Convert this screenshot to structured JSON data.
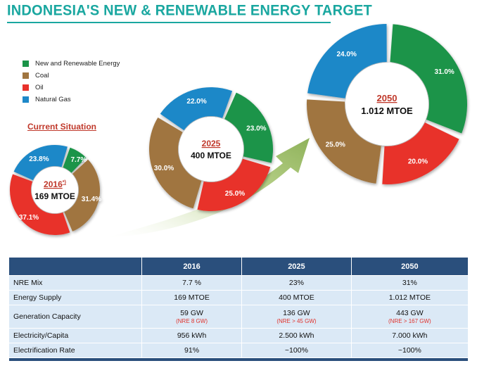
{
  "title": "INDONESIA'S NEW & RENEWABLE ENERGY TARGET",
  "current_situation_label": "Current Situation",
  "legend": [
    {
      "label": "New and Renewable Energy",
      "color": "#1a9448"
    },
    {
      "label": "Coal",
      "color": "#a07540"
    },
    {
      "label": "Oil",
      "color": "#e8312b"
    },
    {
      "label": "Natural Gas",
      "color": "#1e88c8"
    }
  ],
  "chart_data": [
    {
      "type": "pie",
      "year": "2016",
      "superscript": "*)",
      "center_value": "169 MTOE",
      "slices": [
        {
          "name": "New and Renewable Energy",
          "value": 7.7,
          "label": "7.7%",
          "color": "#1a9448"
        },
        {
          "name": "Coal",
          "value": 31.4,
          "label": "31.4%",
          "color": "#a07540"
        },
        {
          "name": "Oil",
          "value": 37.1,
          "label": "37.1%",
          "color": "#e8312b"
        },
        {
          "name": "Natural Gas",
          "value": 23.8,
          "label": "23.8%",
          "color": "#1e88c8"
        }
      ]
    },
    {
      "type": "pie",
      "year": "2025",
      "center_value": "400 MTOE",
      "slices": [
        {
          "name": "New and Renewable Energy",
          "value": 23.0,
          "label": "23.0%",
          "color": "#1a9448"
        },
        {
          "name": "Oil",
          "value": 25.0,
          "label": "25.0%",
          "color": "#e8312b"
        },
        {
          "name": "Coal",
          "value": 30.0,
          "label": "30.0%",
          "color": "#a07540"
        },
        {
          "name": "Natural Gas",
          "value": 22.0,
          "label": "22.0%",
          "color": "#1e88c8"
        }
      ]
    },
    {
      "type": "pie",
      "year": "2050",
      "center_value": "1.012 MTOE",
      "slices": [
        {
          "name": "New and Renewable Energy",
          "value": 31.0,
          "label": "31.0%",
          "color": "#1a9448"
        },
        {
          "name": "Oil",
          "value": 20.0,
          "label": "20.0%",
          "color": "#e8312b"
        },
        {
          "name": "Coal",
          "value": 25.0,
          "label": "25.0%",
          "color": "#a07540"
        },
        {
          "name": "Natural Gas",
          "value": 24.0,
          "label": "24.0%",
          "color": "#1e88c8"
        }
      ]
    }
  ],
  "table": {
    "headers": [
      "",
      "2016",
      "2025",
      "2050"
    ],
    "rows": [
      {
        "label": "NRE Mix",
        "values": [
          "7.7 %",
          "23%",
          "31%"
        ]
      },
      {
        "label": "Energy Supply",
        "values": [
          "169 MTOE",
          "400 MTOE",
          "1.012 MTOE"
        ]
      },
      {
        "label": "Generation Capacity",
        "values": [
          "59 GW",
          "136 GW",
          "443 GW"
        ],
        "notes": [
          "(NRE 8 GW)",
          "(NRE > 45 GW)",
          "(NRE > 167 GW)"
        ]
      },
      {
        "label": "Electricity/Capita",
        "values": [
          "956 kWh",
          "2.500 kWh",
          "7.000 kWh"
        ]
      },
      {
        "label": "Electrification Rate",
        "values": [
          "91%",
          "~100%",
          "~100%"
        ]
      }
    ]
  }
}
